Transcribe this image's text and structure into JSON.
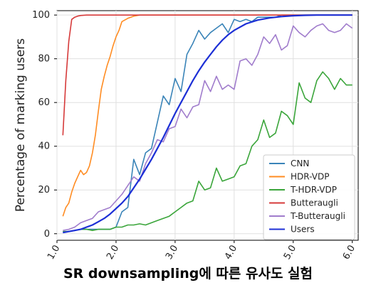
{
  "caption": "SR downsampling에 따른 유사도 실험",
  "chart_data": {
    "type": "line",
    "title": "",
    "xlabel": "",
    "ylabel": "Percentage of marking users",
    "xlim": [
      1.0,
      6.1
    ],
    "ylim": [
      -3,
      102
    ],
    "xticks": [
      "1.0",
      "2.0",
      "3.0",
      "4.0",
      "5.0",
      "6.0"
    ],
    "yticks": [
      "0",
      "20",
      "40",
      "60",
      "80",
      "100"
    ],
    "grid": true,
    "legend_position": "lower-right",
    "series": [
      {
        "name": "CNN",
        "color": "#3a84b8",
        "x": [
          1.1,
          1.2,
          1.3,
          1.4,
          1.5,
          1.6,
          1.7,
          1.8,
          1.9,
          2.0,
          2.1,
          2.2,
          2.3,
          2.4,
          2.5,
          2.6,
          2.7,
          2.8,
          2.9,
          3.0,
          3.1,
          3.2,
          3.3,
          3.4,
          3.5,
          3.6,
          3.7,
          3.8,
          3.9,
          4.0,
          4.1,
          4.2,
          4.3,
          4.4,
          4.5,
          4.6,
          4.7,
          4.8,
          4.9,
          5.0,
          5.2,
          5.4,
          5.6,
          5.8,
          6.0
        ],
        "y": [
          1,
          1,
          1.5,
          2,
          2,
          2,
          2,
          2,
          2,
          3,
          10,
          12,
          34,
          27,
          37,
          39,
          51,
          63,
          59,
          71,
          65,
          82,
          87,
          93,
          89,
          92,
          94,
          96,
          92,
          98,
          97,
          98,
          97,
          99,
          99,
          99,
          99,
          100,
          100,
          100,
          100,
          100,
          100,
          100,
          100
        ]
      },
      {
        "name": "HDR-VDP",
        "color": "#ff8c22",
        "x": [
          1.1,
          1.15,
          1.2,
          1.25,
          1.3,
          1.35,
          1.4,
          1.45,
          1.5,
          1.55,
          1.6,
          1.65,
          1.7,
          1.75,
          1.8,
          1.85,
          1.9,
          1.95,
          2.0,
          2.05,
          2.1,
          2.2,
          2.3,
          2.4,
          2.5,
          3.0,
          4.0,
          5.0,
          6.0
        ],
        "y": [
          8,
          12,
          14,
          19,
          23,
          26,
          29,
          27,
          28,
          31,
          37,
          45,
          56,
          66,
          72,
          77,
          81,
          86,
          90,
          93,
          97,
          98.5,
          99.5,
          100,
          100,
          100,
          100,
          100,
          100
        ]
      },
      {
        "name": "T-HDR-VDP",
        "color": "#3aa53a",
        "x": [
          1.1,
          1.2,
          1.3,
          1.4,
          1.5,
          1.6,
          1.7,
          1.8,
          1.9,
          2.0,
          2.1,
          2.2,
          2.3,
          2.4,
          2.5,
          2.6,
          2.7,
          2.8,
          2.9,
          3.0,
          3.1,
          3.2,
          3.3,
          3.4,
          3.5,
          3.6,
          3.7,
          3.8,
          3.9,
          4.0,
          4.1,
          4.2,
          4.3,
          4.4,
          4.5,
          4.6,
          4.7,
          4.8,
          4.9,
          5.0,
          5.1,
          5.2,
          5.3,
          5.4,
          5.5,
          5.6,
          5.7,
          5.8,
          5.9,
          6.0
        ],
        "y": [
          1,
          1,
          1.5,
          2,
          2,
          1.5,
          2,
          2,
          2,
          3,
          3,
          4,
          4,
          4.5,
          4,
          5,
          6,
          7,
          8,
          10,
          12,
          14,
          15,
          24,
          20,
          21,
          30,
          24,
          25,
          26,
          31,
          32,
          40,
          43,
          52,
          44,
          46,
          56,
          54,
          50,
          69,
          62,
          60,
          70,
          74,
          71,
          66,
          71,
          68,
          68
        ]
      },
      {
        "name": "Butteraugli",
        "color": "#d63a3a",
        "x": [
          1.1,
          1.15,
          1.2,
          1.25,
          1.3,
          1.35,
          1.4,
          1.5,
          1.7,
          2.0,
          3.0,
          4.0,
          5.0,
          6.0
        ],
        "y": [
          45,
          70,
          88,
          98,
          99,
          99.5,
          99.8,
          100,
          100,
          100,
          100,
          100,
          100,
          100
        ]
      },
      {
        "name": "T-Butteraugli",
        "color": "#a07ccc",
        "x": [
          1.1,
          1.2,
          1.3,
          1.4,
          1.5,
          1.6,
          1.7,
          1.8,
          1.9,
          2.0,
          2.1,
          2.2,
          2.3,
          2.4,
          2.5,
          2.6,
          2.7,
          2.8,
          2.9,
          3.0,
          3.1,
          3.2,
          3.3,
          3.4,
          3.5,
          3.6,
          3.7,
          3.8,
          3.9,
          4.0,
          4.1,
          4.2,
          4.3,
          4.4,
          4.5,
          4.6,
          4.7,
          4.8,
          4.9,
          5.0,
          5.1,
          5.2,
          5.3,
          5.4,
          5.5,
          5.6,
          5.7,
          5.8,
          5.9,
          6.0
        ],
        "y": [
          1.5,
          2,
          3,
          5,
          6,
          7,
          10,
          11,
          12,
          15,
          18,
          22,
          26,
          24,
          32,
          37,
          43,
          42,
          48,
          49,
          57,
          53,
          58,
          59,
          70,
          65,
          72,
          66,
          68,
          66,
          79,
          80,
          77,
          82,
          90,
          87,
          91,
          84,
          86,
          95,
          92,
          90,
          93,
          95,
          96,
          93,
          92,
          93,
          96,
          94
        ]
      },
      {
        "name": "Users",
        "color": "#1c2fd6",
        "x": [
          1.1,
          1.2,
          1.3,
          1.4,
          1.5,
          1.6,
          1.7,
          1.8,
          1.9,
          2.0,
          2.1,
          2.2,
          2.3,
          2.4,
          2.5,
          2.6,
          2.7,
          2.8,
          2.9,
          3.0,
          3.1,
          3.2,
          3.3,
          3.4,
          3.5,
          3.6,
          3.7,
          3.8,
          3.9,
          4.0,
          4.2,
          4.4,
          4.6,
          4.8,
          5.0,
          5.2,
          5.4,
          5.6,
          5.8,
          6.0
        ],
        "y": [
          0.5,
          1,
          1.5,
          2,
          3,
          4,
          5.5,
          7,
          9,
          11.5,
          14,
          17,
          21,
          25,
          29.5,
          34,
          39,
          44,
          49.5,
          55,
          60,
          65,
          70,
          74.5,
          78.5,
          82,
          85.5,
          88.5,
          91,
          93,
          96,
          97.7,
          98.7,
          99.3,
          99.7,
          99.9,
          100,
          100,
          100,
          100
        ]
      }
    ]
  }
}
